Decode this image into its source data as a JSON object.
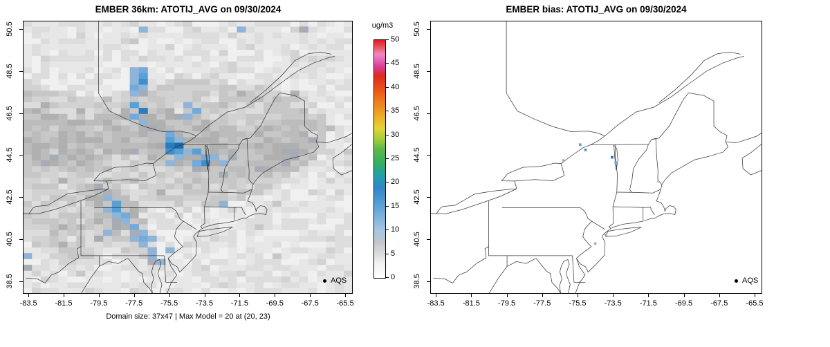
{
  "left_panel": {
    "title": "EMBER 36km: ATOTIJ_AVG on 09/30/2024",
    "subtitle": "Domain size: 37x47 | Max Model = 20 at (20, 23)",
    "legend_label": "AQS",
    "x_tick_labels": [
      "-83.5",
      "-81.5",
      "-79.5",
      "-77.5",
      "-75.5",
      "-73.5",
      "-71.5",
      "-69.5",
      "-67.5",
      "-65.5"
    ],
    "y_tick_labels": [
      "38.5",
      "40.5",
      "42.5",
      "44.5",
      "46.5",
      "48.5",
      "50.5"
    ]
  },
  "right_panel": {
    "title": "EMBER bias: ATOTIJ_AVG on 09/30/2024",
    "legend_label": "AQS",
    "x_tick_labels": [
      "-83.5",
      "-81.5",
      "-79.5",
      "-77.5",
      "-75.5",
      "-73.5",
      "-71.5",
      "-69.5",
      "-67.5",
      "-65.5"
    ],
    "y_tick_labels": [
      "38.5",
      "40.5",
      "42.5",
      "44.5",
      "46.5",
      "48.5",
      "50.5"
    ]
  },
  "colorbar": {
    "label": "ug/m3",
    "tick_values": [
      0,
      5,
      10,
      15,
      20,
      25,
      30,
      35,
      40,
      45,
      50
    ],
    "gradient_stops": [
      [
        0,
        "#ffffff"
      ],
      [
        6,
        "#f2f2f2"
      ],
      [
        10,
        "#dcdcdc"
      ],
      [
        15,
        "#c2c6cc"
      ],
      [
        20,
        "#a6c6e4"
      ],
      [
        26,
        "#7db0dc"
      ],
      [
        32,
        "#4f9bd5"
      ],
      [
        38,
        "#2f86c6"
      ],
      [
        43,
        "#22a0ab"
      ],
      [
        48,
        "#33ae62"
      ],
      [
        54,
        "#5bb848"
      ],
      [
        58,
        "#a3cb3a"
      ],
      [
        63,
        "#e3d437"
      ],
      [
        68,
        "#eeab28"
      ],
      [
        74,
        "#ee7e1e"
      ],
      [
        80,
        "#e84e1a"
      ],
      [
        85,
        "#df2a20"
      ],
      [
        89,
        "#d83f9f"
      ],
      [
        94,
        "#ef8ac4"
      ],
      [
        97,
        "#e85560"
      ],
      [
        100,
        "#e31a1c"
      ]
    ]
  },
  "chart_data": {
    "type": "heatmap",
    "panels": [
      {
        "title": "EMBER 36km: ATOTIJ_AVG on 09/30/2024",
        "content": "gridded model concentration field"
      },
      {
        "title": "EMBER bias: ATOTIJ_AVG on 09/30/2024",
        "content": "station bias dots only"
      }
    ],
    "units": "ug/m3",
    "colorbar_range": [
      0,
      50
    ],
    "x_ticks": [
      -83.5,
      -81.5,
      -79.5,
      -77.5,
      -75.5,
      -73.5,
      -71.5,
      -69.5,
      -67.5,
      -65.5
    ],
    "y_ticks": [
      38.5,
      40.5,
      42.5,
      44.5,
      46.5,
      48.5,
      50.5
    ],
    "extent": {
      "lon": [
        -83.82,
        -65.07
      ],
      "lat": [
        37.91,
        50.89
      ]
    },
    "grid": {
      "ncols": 37,
      "nrows": 47
    },
    "max_model": {
      "value": 20,
      "at": [
        20,
        23
      ]
    },
    "scale": [
      [
        1,
        "#f0f0f0"
      ],
      [
        2,
        "#e7e7e7"
      ],
      [
        3,
        "#dddddd"
      ],
      [
        4,
        "#d2d2d2"
      ],
      [
        5,
        "#c7c7c7"
      ],
      [
        6,
        "#bcbcbc"
      ],
      [
        7,
        "#b0b0b0"
      ],
      [
        8,
        "#a6abb4"
      ],
      [
        10,
        "#8fb4d8"
      ],
      [
        12,
        "#74aadb"
      ],
      [
        14,
        "#57a0d6"
      ],
      [
        16,
        "#3c8fcd"
      ],
      [
        18,
        "#2a7dbd"
      ],
      [
        999,
        "#1a6aad"
      ]
    ],
    "gray_regions": [
      {
        "add": 2.1,
        "poly": [
          [
            -83.85,
            48.2
          ],
          [
            -80.5,
            47.2
          ],
          [
            -77.0,
            47.9
          ],
          [
            -74.0,
            48.1
          ],
          [
            -70.5,
            47.9
          ],
          [
            -67.6,
            47.3
          ],
          [
            -66.3,
            45.8
          ],
          [
            -67.6,
            44.0
          ],
          [
            -70.3,
            42.6
          ],
          [
            -73.5,
            42.0
          ],
          [
            -76.0,
            42.3
          ],
          [
            -78.6,
            40.6
          ],
          [
            -79.8,
            39.6
          ],
          [
            -81.2,
            39.2
          ],
          [
            -83.85,
            40.6
          ]
        ]
      },
      {
        "add": 1.7,
        "poly": [
          [
            -83.85,
            46.9
          ],
          [
            -80.5,
            46.2
          ],
          [
            -77.0,
            46.9
          ],
          [
            -74.0,
            46.4
          ],
          [
            -71.0,
            45.6
          ],
          [
            -68.6,
            46.6
          ],
          [
            -67.2,
            46.0
          ],
          [
            -67.9,
            44.5
          ],
          [
            -70.0,
            43.6
          ],
          [
            -72.8,
            43.4
          ],
          [
            -75.5,
            44.2
          ],
          [
            -78.2,
            44.6
          ],
          [
            -80.8,
            43.6
          ],
          [
            -83.85,
            44.3
          ]
        ]
      },
      {
        "add": 1.9,
        "poly": [
          [
            -80.3,
            43.2
          ],
          [
            -77.6,
            42.6
          ],
          [
            -76.3,
            40.3
          ],
          [
            -76.8,
            39.4
          ],
          [
            -78.4,
            39.9
          ],
          [
            -79.7,
            41.6
          ]
        ]
      },
      {
        "add": 1.3,
        "poly": [
          [
            -71.0,
            43.2
          ],
          [
            -68.0,
            44.0
          ],
          [
            -66.6,
            44.6
          ],
          [
            -67.0,
            45.3
          ],
          [
            -69.0,
            44.9
          ],
          [
            -70.8,
            43.9
          ]
        ]
      }
    ],
    "model_cells": [
      [
        -77.65,
        48.55,
        10
      ],
      [
        -77.15,
        48.5,
        12
      ],
      [
        -77.4,
        48.25,
        9
      ],
      [
        -76.9,
        48.2,
        13
      ],
      [
        -77.65,
        47.95,
        10
      ],
      [
        -77.15,
        47.9,
        15
      ],
      [
        -77.4,
        47.65,
        11
      ],
      [
        -76.9,
        47.6,
        9
      ],
      [
        -77.15,
        47.35,
        8
      ],
      [
        -77.65,
        47.3,
        9
      ],
      [
        -76.9,
        50.55,
        9
      ],
      [
        -71.4,
        50.6,
        10
      ],
      [
        -68.0,
        50.5,
        8
      ],
      [
        -77.4,
        46.75,
        14
      ],
      [
        -77.15,
        46.5,
        17
      ],
      [
        -77.4,
        46.2,
        12
      ],
      [
        -76.9,
        46.1,
        9
      ],
      [
        -76.65,
        45.9,
        8
      ],
      [
        -75.6,
        45.45,
        11
      ],
      [
        -75.35,
        45.3,
        14
      ],
      [
        -75.1,
        45.2,
        12
      ],
      [
        -74.85,
        45.1,
        10
      ],
      [
        -75.6,
        45.05,
        13
      ],
      [
        -75.35,
        44.95,
        17
      ],
      [
        -75.1,
        44.85,
        19
      ],
      [
        -74.85,
        44.8,
        13
      ],
      [
        -75.6,
        44.65,
        10
      ],
      [
        -75.35,
        44.6,
        15
      ],
      [
        -75.1,
        44.5,
        12
      ],
      [
        -74.85,
        44.4,
        10
      ],
      [
        -75.35,
        44.2,
        9
      ],
      [
        -74.6,
        44.6,
        9
      ],
      [
        -74.35,
        46.9,
        10
      ],
      [
        -74.1,
        46.6,
        12
      ],
      [
        -74.35,
        46.35,
        9
      ],
      [
        -73.7,
        44.55,
        14
      ],
      [
        -73.7,
        44.25,
        20
      ],
      [
        -73.45,
        44.1,
        15
      ],
      [
        -73.95,
        44.1,
        11
      ],
      [
        -73.45,
        44.4,
        12
      ],
      [
        -72.7,
        44.3,
        9
      ],
      [
        -72.45,
        44.0,
        10
      ],
      [
        -72.2,
        43.7,
        8
      ],
      [
        -72.45,
        42.3,
        9
      ],
      [
        -79.25,
        42.35,
        9
      ],
      [
        -78.75,
        42.25,
        12
      ],
      [
        -78.5,
        42.1,
        14
      ],
      [
        -79.0,
        42.0,
        10
      ],
      [
        -78.25,
        41.9,
        13
      ],
      [
        -78.75,
        41.75,
        10
      ],
      [
        -78.0,
        41.7,
        11
      ],
      [
        -78.5,
        41.5,
        9
      ],
      [
        -77.75,
        41.45,
        10
      ],
      [
        -78.25,
        41.3,
        8
      ],
      [
        -77.5,
        41.15,
        10
      ],
      [
        -77.25,
        41.0,
        12
      ],
      [
        -77.0,
        40.85,
        10
      ],
      [
        -77.5,
        40.7,
        8
      ],
      [
        -76.75,
        40.65,
        11
      ],
      [
        -77.25,
        40.5,
        9
      ],
      [
        -76.5,
        40.45,
        10
      ],
      [
        -76.75,
        40.2,
        9
      ],
      [
        -76.5,
        40.05,
        8
      ],
      [
        -76.25,
        39.9,
        10
      ],
      [
        -76.5,
        39.7,
        9
      ],
      [
        -76.25,
        39.5,
        8
      ],
      [
        -76.0,
        39.35,
        9
      ],
      [
        -79.25,
        40.9,
        9
      ],
      [
        -79.5,
        40.4,
        8
      ],
      [
        -83.55,
        39.75,
        10
      ],
      [
        -83.55,
        39.2,
        8
      ],
      [
        -75.25,
        40.0,
        9
      ]
    ],
    "bias_dots": [
      [
        -75.35,
        45.0,
        13
      ],
      [
        -75.05,
        44.75,
        16
      ],
      [
        -73.55,
        44.4,
        19
      ],
      [
        -73.35,
        44.15,
        11
      ],
      [
        -76.3,
        44.25,
        9
      ],
      [
        -74.5,
        40.3,
        7
      ],
      [
        -73.9,
        40.72,
        8
      ],
      [
        -70.95,
        43.25,
        5
      ]
    ]
  }
}
